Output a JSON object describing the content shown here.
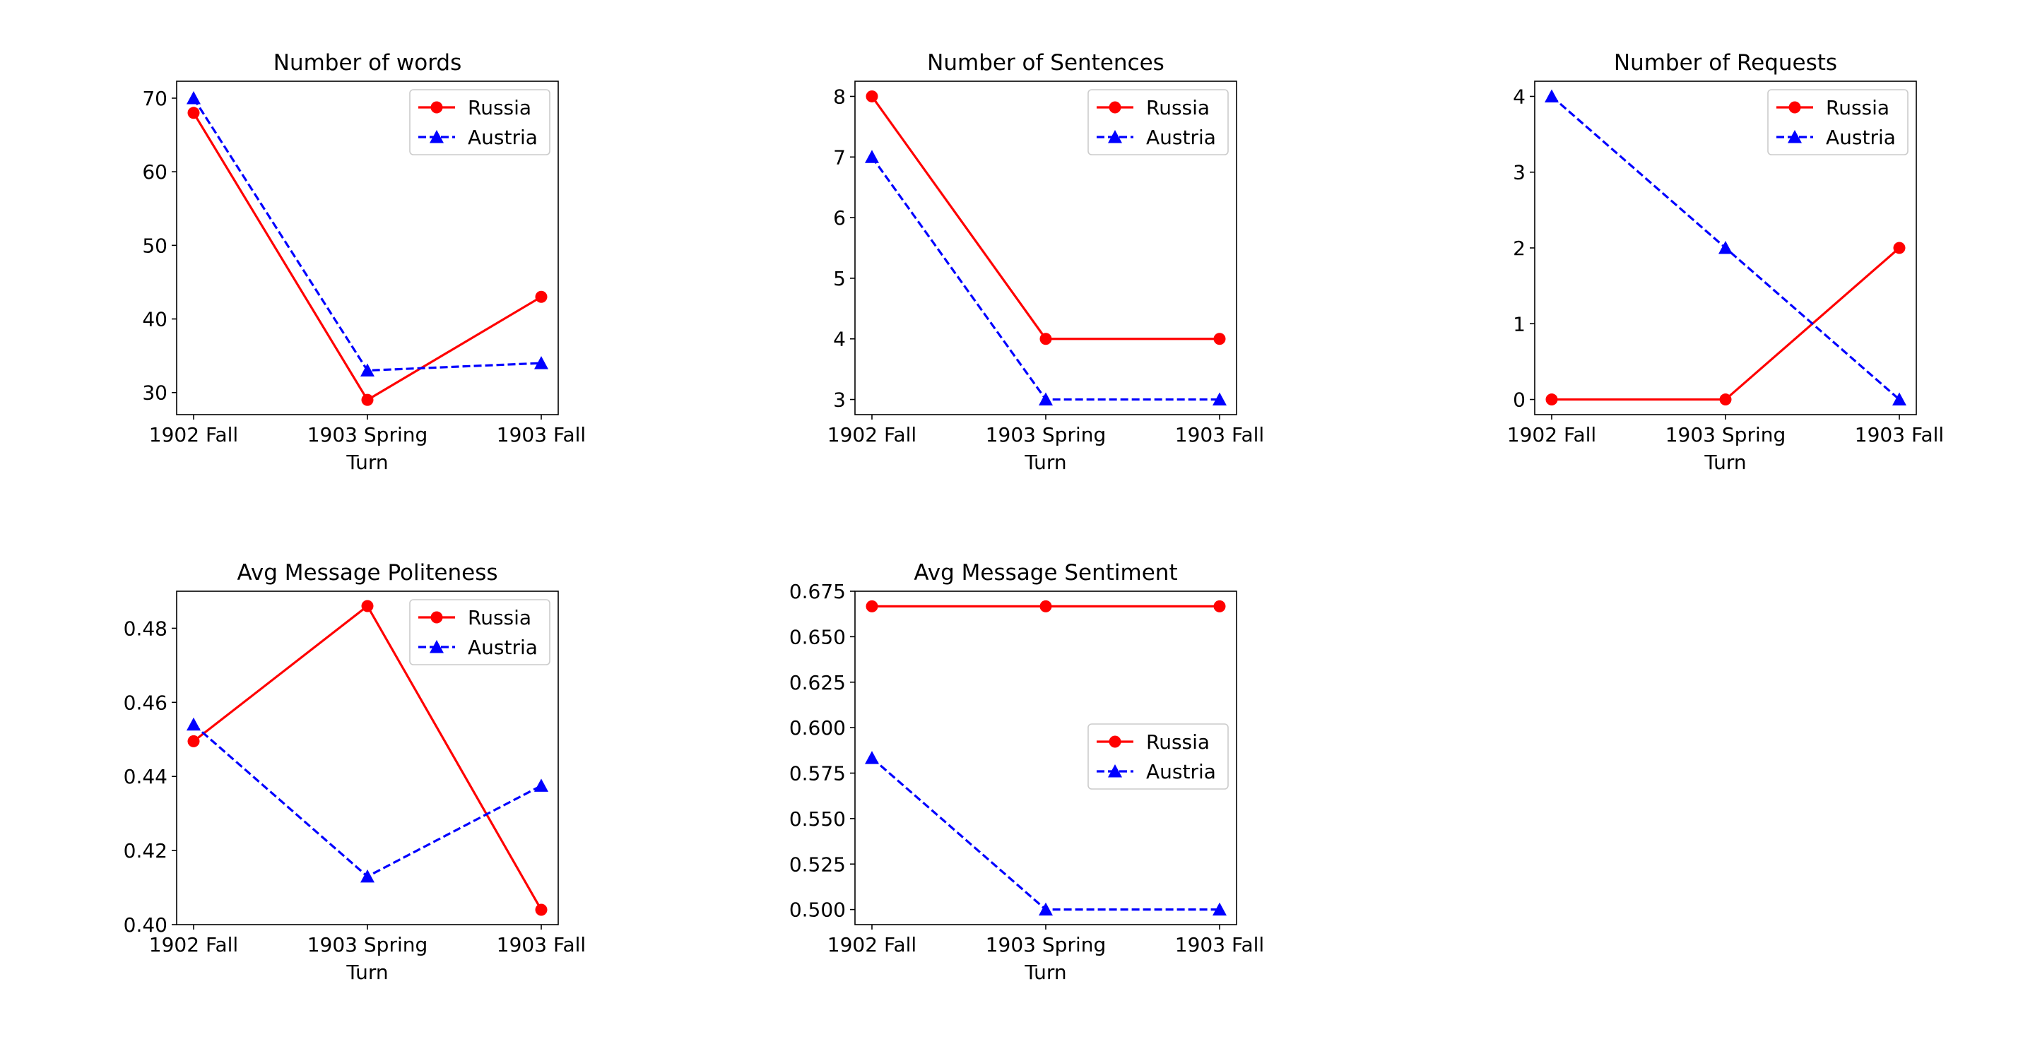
{
  "chart_data": [
    {
      "type": "line",
      "title": "Number of words",
      "xlabel": "Turn",
      "ylabel": "",
      "categories": [
        "1902 Fall",
        "1903 Spring",
        "1903 Fall"
      ],
      "ylim": [
        27,
        72.3
      ],
      "yticks": [
        30,
        40,
        50,
        60,
        70
      ],
      "legend": "top-right",
      "series": [
        {
          "name": "Russia",
          "values": [
            68,
            29,
            43
          ],
          "color": "#ff0000",
          "marker": "circle",
          "linestyle": "solid"
        },
        {
          "name": "Austria",
          "values": [
            70,
            33,
            34
          ],
          "color": "#0000ff",
          "marker": "triangle",
          "linestyle": "dashed"
        }
      ]
    },
    {
      "type": "line",
      "title": "Number of Sentences",
      "xlabel": "Turn",
      "ylabel": "",
      "categories": [
        "1902 Fall",
        "1903 Spring",
        "1903 Fall"
      ],
      "ylim": [
        2.75,
        8.25
      ],
      "yticks": [
        3,
        4,
        5,
        6,
        7,
        8
      ],
      "legend": "top-right",
      "series": [
        {
          "name": "Russia",
          "values": [
            8,
            4,
            4
          ],
          "color": "#ff0000",
          "marker": "circle",
          "linestyle": "solid"
        },
        {
          "name": "Austria",
          "values": [
            7,
            3,
            3
          ],
          "color": "#0000ff",
          "marker": "triangle",
          "linestyle": "dashed"
        }
      ]
    },
    {
      "type": "line",
      "title": "Number of Requests",
      "xlabel": "Turn",
      "ylabel": "",
      "categories": [
        "1902 Fall",
        "1903 Spring",
        "1903 Fall"
      ],
      "ylim": [
        -0.2,
        4.2
      ],
      "yticks": [
        0,
        1,
        2,
        3,
        4
      ],
      "legend": "top-right",
      "series": [
        {
          "name": "Russia",
          "values": [
            0,
            0,
            2
          ],
          "color": "#ff0000",
          "marker": "circle",
          "linestyle": "solid"
        },
        {
          "name": "Austria",
          "values": [
            4,
            2,
            0
          ],
          "color": "#0000ff",
          "marker": "triangle",
          "linestyle": "dashed"
        }
      ]
    },
    {
      "type": "line",
      "title": "Avg Message Politeness",
      "xlabel": "Turn",
      "ylabel": "",
      "categories": [
        "1902 Fall",
        "1903 Spring",
        "1903 Fall"
      ],
      "ylim": [
        0.4,
        0.49
      ],
      "yticks": [
        0.4,
        0.42,
        0.44,
        0.46,
        0.48
      ],
      "ytick_labels": [
        "0.40",
        "0.42",
        "0.44",
        "0.46",
        "0.48"
      ],
      "legend": "top-right",
      "series": [
        {
          "name": "Russia",
          "values": [
            0.4495,
            0.486,
            0.404
          ],
          "color": "#ff0000",
          "marker": "circle",
          "linestyle": "solid"
        },
        {
          "name": "Austria",
          "values": [
            0.454,
            0.413,
            0.4375
          ],
          "color": "#0000ff",
          "marker": "triangle",
          "linestyle": "dashed"
        }
      ]
    },
    {
      "type": "line",
      "title": "Avg Message Sentiment",
      "xlabel": "Turn",
      "ylabel": "",
      "categories": [
        "1902 Fall",
        "1903 Spring",
        "1903 Fall"
      ],
      "ylim": [
        0.4917,
        0.675
      ],
      "yticks": [
        0.5,
        0.525,
        0.55,
        0.575,
        0.6,
        0.625,
        0.65,
        0.675
      ],
      "ytick_labels": [
        "0.500",
        "0.525",
        "0.550",
        "0.575",
        "0.600",
        "0.625",
        "0.650",
        "0.675"
      ],
      "legend": "center-right",
      "series": [
        {
          "name": "Russia",
          "values": [
            0.6667,
            0.6667,
            0.6667
          ],
          "color": "#ff0000",
          "marker": "circle",
          "linestyle": "solid"
        },
        {
          "name": "Austria",
          "values": [
            0.5833,
            0.5,
            0.5
          ],
          "color": "#0000ff",
          "marker": "triangle",
          "linestyle": "dashed"
        }
      ]
    }
  ]
}
